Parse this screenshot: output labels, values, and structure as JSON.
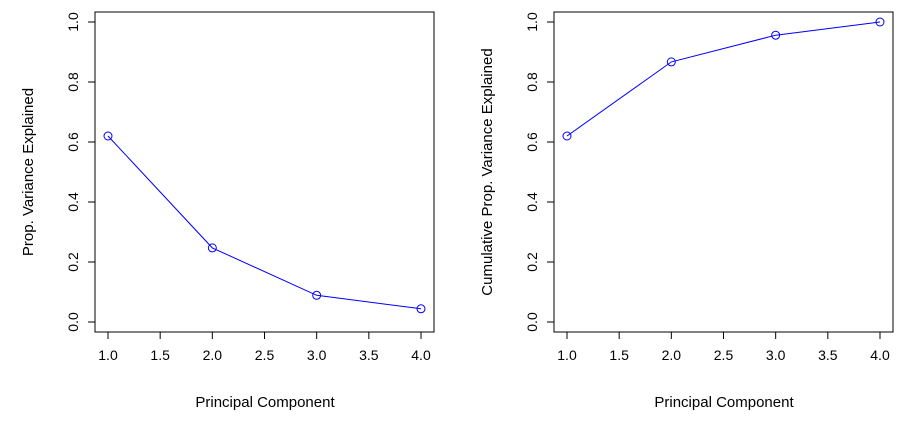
{
  "chart_data": [
    {
      "type": "line",
      "title": "",
      "xlabel": "Principal Component",
      "ylabel": "Prop. Variance Explained",
      "x": [
        1,
        2,
        3,
        4
      ],
      "series": [
        {
          "values": [
            0.62,
            0.247,
            0.089,
            0.044
          ]
        }
      ],
      "xlim": [
        1,
        4
      ],
      "ylim": [
        0,
        1
      ],
      "xticks": [
        "1.0",
        "1.5",
        "2.0",
        "2.5",
        "3.0",
        "3.5",
        "4.0"
      ],
      "yticks": [
        "0.0",
        "0.2",
        "0.4",
        "0.6",
        "0.8",
        "1.0"
      ],
      "grid": false,
      "color": "#0000ff",
      "marker": "open-circle"
    },
    {
      "type": "line",
      "title": "",
      "xlabel": "Principal Component",
      "ylabel": "Cumulative Prop. Variance Explained",
      "x": [
        1,
        2,
        3,
        4
      ],
      "series": [
        {
          "values": [
            0.62,
            0.867,
            0.956,
            1.0
          ]
        }
      ],
      "xlim": [
        1,
        4
      ],
      "ylim": [
        0,
        1
      ],
      "xticks": [
        "1.0",
        "1.5",
        "2.0",
        "2.5",
        "3.0",
        "3.5",
        "4.0"
      ],
      "yticks": [
        "0.0",
        "0.2",
        "0.4",
        "0.6",
        "0.8",
        "1.0"
      ],
      "grid": false,
      "color": "#0000ff",
      "marker": "open-circle"
    }
  ]
}
